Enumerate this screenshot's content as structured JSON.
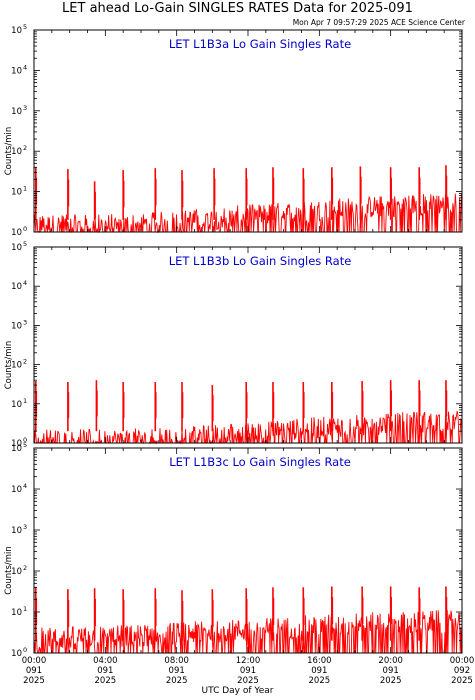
{
  "header": {
    "title": "LET ahead Lo-Gain SINGLES RATES Data for 2025-091",
    "timestamp": "Mon Apr  7 09:57:29 2025 ACE Science Center"
  },
  "x_axis_label": "UTC Day of Year",
  "y_axis_label": "Counts/min",
  "colors": {
    "series": "#ff0000",
    "panel_title": "#0000cc",
    "axes": "#000000"
  },
  "chart_data": [
    {
      "type": "line",
      "title": "LET L1B3a Lo Gain Singles Rate",
      "ylabel": "Counts/min",
      "xlabel": "UTC Day of Year",
      "yscale": "log",
      "ylim": [
        1,
        100000
      ],
      "xlim_hours": [
        0,
        24
      ],
      "y_ticks": [
        {
          "value": 1,
          "base": "10",
          "exp": "0"
        },
        {
          "value": 10,
          "base": "10",
          "exp": "1"
        },
        {
          "value": 100,
          "base": "10",
          "exp": "2"
        },
        {
          "value": 1000,
          "base": "10",
          "exp": "3"
        },
        {
          "value": 10000,
          "base": "10",
          "exp": "4"
        },
        {
          "value": 100000,
          "base": "10",
          "exp": "5"
        }
      ],
      "series": [
        {
          "baseline": [
            [
              0,
              1.2
            ],
            [
              3,
              1.2
            ],
            [
              6,
              1.3
            ],
            [
              9,
              1.6
            ],
            [
              12,
              2.1
            ],
            [
              15,
              2.6
            ],
            [
              18,
              3.2
            ],
            [
              21,
              3.9
            ],
            [
              24,
              4.2
            ]
          ],
          "spikes": [
            [
              0.1,
              40
            ],
            [
              1.9,
              36
            ],
            [
              3.4,
              18
            ],
            [
              5.0,
              34
            ],
            [
              6.8,
              38
            ],
            [
              8.3,
              34
            ],
            [
              10.1,
              38
            ],
            [
              11.9,
              38
            ],
            [
              13.4,
              40
            ],
            [
              15.1,
              38
            ],
            [
              16.7,
              40
            ],
            [
              18.3,
              42
            ],
            [
              20.0,
              40
            ],
            [
              21.6,
              40
            ],
            [
              23.1,
              45
            ]
          ]
        }
      ]
    },
    {
      "type": "line",
      "title": "LET L1B3b Lo Gain Singles Rate",
      "ylabel": "Counts/min",
      "xlabel": "UTC Day of Year",
      "yscale": "log",
      "ylim": [
        1,
        100000
      ],
      "xlim_hours": [
        0,
        24
      ],
      "y_ticks": [
        {
          "value": 1,
          "base": "10",
          "exp": "0"
        },
        {
          "value": 10,
          "base": "10",
          "exp": "1"
        },
        {
          "value": 100,
          "base": "10",
          "exp": "2"
        },
        {
          "value": 1000,
          "base": "10",
          "exp": "3"
        },
        {
          "value": 10000,
          "base": "10",
          "exp": "4"
        },
        {
          "value": 100000,
          "base": "10",
          "exp": "5"
        }
      ],
      "series": [
        {
          "baseline": [
            [
              0,
              1.0
            ],
            [
              3,
              1.0
            ],
            [
              6,
              1.05
            ],
            [
              9,
              1.2
            ],
            [
              12,
              1.5
            ],
            [
              15,
              1.9
            ],
            [
              18,
              2.3
            ],
            [
              21,
              2.8
            ],
            [
              24,
              3.0
            ]
          ],
          "spikes": [
            [
              0.1,
              38
            ],
            [
              1.9,
              36
            ],
            [
              3.5,
              40
            ],
            [
              5.0,
              36
            ],
            [
              6.8,
              36
            ],
            [
              8.3,
              36
            ],
            [
              10.0,
              30
            ],
            [
              11.9,
              36
            ],
            [
              13.4,
              36
            ],
            [
              15.1,
              36
            ],
            [
              16.7,
              36
            ],
            [
              18.4,
              38
            ],
            [
              20.0,
              40
            ],
            [
              21.6,
              40
            ],
            [
              23.1,
              40
            ]
          ]
        }
      ]
    },
    {
      "type": "line",
      "title": "LET L1B3c Lo Gain Singles Rate",
      "ylabel": "Counts/min",
      "xlabel": "UTC Day of Year",
      "yscale": "log",
      "ylim": [
        1,
        100000
      ],
      "xlim_hours": [
        0,
        24
      ],
      "x_ticks": [
        {
          "hour": 0,
          "time": "00:00",
          "day": "091",
          "year": "2025"
        },
        {
          "hour": 4,
          "time": "04:00",
          "day": "091",
          "year": "2025"
        },
        {
          "hour": 8,
          "time": "08:00",
          "day": "091",
          "year": "2025"
        },
        {
          "hour": 12,
          "time": "12:00",
          "day": "091",
          "year": "2025"
        },
        {
          "hour": 16,
          "time": "16:00",
          "day": "091",
          "year": "2025"
        },
        {
          "hour": 20,
          "time": "20:00",
          "day": "091",
          "year": "2025"
        },
        {
          "hour": 24,
          "time": "00:00",
          "day": "092",
          "year": "2025"
        }
      ],
      "y_ticks": [
        {
          "value": 1,
          "base": "10",
          "exp": "0"
        },
        {
          "value": 10,
          "base": "10",
          "exp": "1"
        },
        {
          "value": 100,
          "base": "10",
          "exp": "2"
        },
        {
          "value": 1000,
          "base": "10",
          "exp": "3"
        },
        {
          "value": 10000,
          "base": "10",
          "exp": "4"
        },
        {
          "value": 100000,
          "base": "10",
          "exp": "5"
        }
      ],
      "series": [
        {
          "baseline": [
            [
              0,
              1.8
            ],
            [
              3,
              2.0
            ],
            [
              6,
              2.2
            ],
            [
              9,
              2.6
            ],
            [
              12,
              3.0
            ],
            [
              15,
              3.6
            ],
            [
              18,
              4.2
            ],
            [
              21,
              4.6
            ],
            [
              24,
              5.0
            ]
          ],
          "spikes": [
            [
              0.1,
              40
            ],
            [
              1.9,
              36
            ],
            [
              3.4,
              38
            ],
            [
              5.0,
              36
            ],
            [
              6.8,
              38
            ],
            [
              8.3,
              34
            ],
            [
              10.0,
              36
            ],
            [
              11.9,
              38
            ],
            [
              13.4,
              40
            ],
            [
              15.1,
              40
            ],
            [
              16.7,
              42
            ],
            [
              18.4,
              42
            ],
            [
              20.0,
              42
            ],
            [
              21.6,
              40
            ],
            [
              23.1,
              42
            ]
          ]
        }
      ]
    }
  ]
}
